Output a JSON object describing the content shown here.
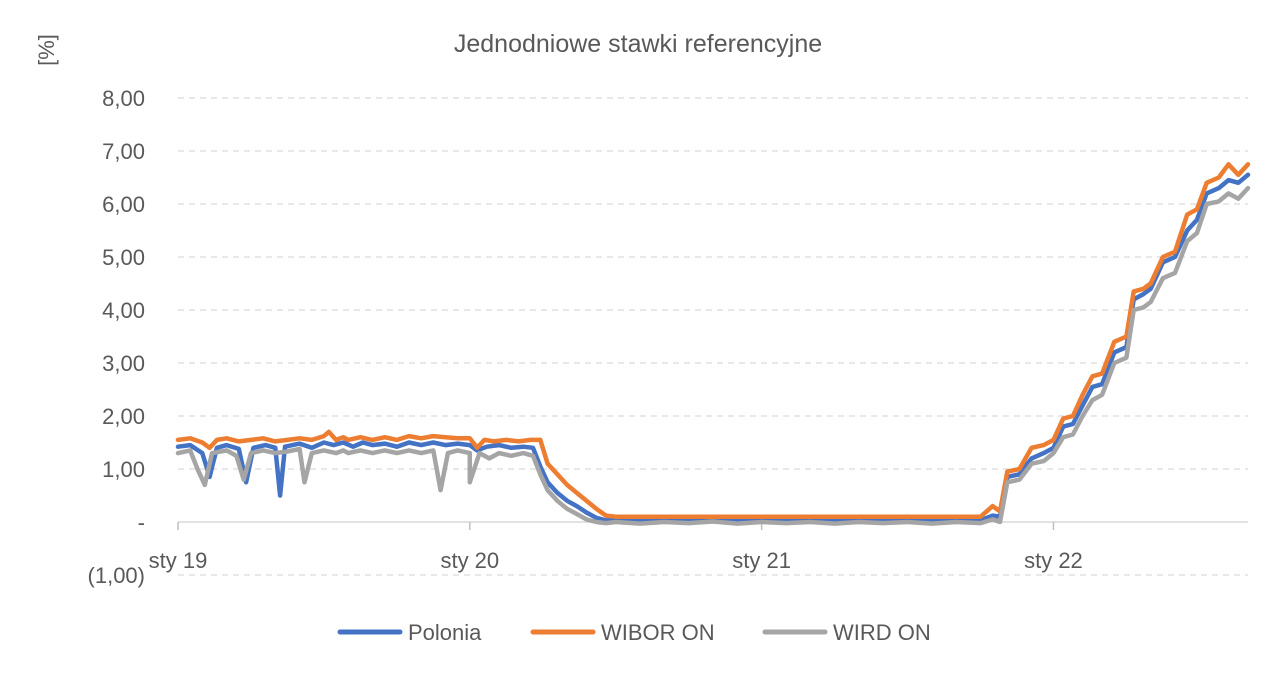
{
  "chart_data": {
    "type": "line",
    "title": "Jednodniowe stawki referencyjne",
    "ylabel": "[%]",
    "ylim": [
      -1,
      8
    ],
    "yticks": [
      {
        "value": 8,
        "label": "8,00"
      },
      {
        "value": 7,
        "label": "7,00"
      },
      {
        "value": 6,
        "label": "6,00"
      },
      {
        "value": 5,
        "label": "5,00"
      },
      {
        "value": 4,
        "label": "4,00"
      },
      {
        "value": 3,
        "label": "3,00"
      },
      {
        "value": 2,
        "label": "2,00"
      },
      {
        "value": 1,
        "label": "1,00"
      },
      {
        "value": 0,
        "label": "-"
      },
      {
        "value": -1,
        "label": "(1,00)"
      }
    ],
    "xticks": [
      {
        "value": 0,
        "label": "sty 19"
      },
      {
        "value": 12,
        "label": "sty 20"
      },
      {
        "value": 24,
        "label": "sty 21"
      },
      {
        "value": 36,
        "label": "sty 22"
      }
    ],
    "xlim": [
      0,
      44
    ],
    "grid": true,
    "legend": "bottom",
    "series": [
      {
        "name": "Polonia",
        "color": "#4472C4",
        "points": [
          [
            0,
            1.42
          ],
          [
            0.5,
            1.45
          ],
          [
            1,
            1.3
          ],
          [
            1.3,
            0.85
          ],
          [
            1.6,
            1.4
          ],
          [
            2,
            1.45
          ],
          [
            2.5,
            1.38
          ],
          [
            2.8,
            0.75
          ],
          [
            3.1,
            1.4
          ],
          [
            3.6,
            1.45
          ],
          [
            4,
            1.4
          ],
          [
            4.2,
            0.5
          ],
          [
            4.4,
            1.42
          ],
          [
            5,
            1.48
          ],
          [
            5.5,
            1.4
          ],
          [
            6,
            1.5
          ],
          [
            6.4,
            1.45
          ],
          [
            6.8,
            1.5
          ],
          [
            7.2,
            1.42
          ],
          [
            7.6,
            1.5
          ],
          [
            8,
            1.45
          ],
          [
            8.5,
            1.48
          ],
          [
            9,
            1.42
          ],
          [
            9.5,
            1.5
          ],
          [
            10,
            1.45
          ],
          [
            10.5,
            1.5
          ],
          [
            11,
            1.45
          ],
          [
            11.5,
            1.48
          ],
          [
            12,
            1.45
          ],
          [
            12.3,
            1.35
          ],
          [
            12.7,
            1.42
          ],
          [
            13.2,
            1.45
          ],
          [
            13.7,
            1.4
          ],
          [
            14.2,
            1.42
          ],
          [
            14.6,
            1.4
          ],
          [
            14.9,
            1.05
          ],
          [
            15.2,
            0.75
          ],
          [
            15.6,
            0.55
          ],
          [
            16,
            0.4
          ],
          [
            16.4,
            0.3
          ],
          [
            16.8,
            0.18
          ],
          [
            17.2,
            0.08
          ],
          [
            17.6,
            0.03
          ],
          [
            18,
            0.04
          ],
          [
            19,
            0.02
          ],
          [
            20,
            0.04
          ],
          [
            21,
            0.03
          ],
          [
            22,
            0.04
          ],
          [
            23,
            0.02
          ],
          [
            24,
            0.03
          ],
          [
            25,
            0.04
          ],
          [
            26,
            0.02
          ],
          [
            27,
            0.03
          ],
          [
            28,
            0.04
          ],
          [
            29,
            0.03
          ],
          [
            30,
            0.04
          ],
          [
            31,
            0.03
          ],
          [
            32,
            0.04
          ],
          [
            33,
            0.03
          ],
          [
            33.5,
            0.12
          ],
          [
            33.8,
            0.1
          ],
          [
            34.1,
            0.85
          ],
          [
            34.6,
            0.9
          ],
          [
            35.1,
            1.2
          ],
          [
            35.6,
            1.3
          ],
          [
            36,
            1.4
          ],
          [
            36.4,
            1.8
          ],
          [
            36.8,
            1.85
          ],
          [
            37.2,
            2.2
          ],
          [
            37.6,
            2.55
          ],
          [
            38,
            2.6
          ],
          [
            38.5,
            3.2
          ],
          [
            39,
            3.3
          ],
          [
            39.3,
            4.2
          ],
          [
            39.7,
            4.3
          ],
          [
            40,
            4.4
          ],
          [
            40.5,
            4.9
          ],
          [
            41,
            5.0
          ],
          [
            41.5,
            5.5
          ],
          [
            41.9,
            5.7
          ],
          [
            42.3,
            6.2
          ],
          [
            42.8,
            6.3
          ],
          [
            43.2,
            6.45
          ],
          [
            43.6,
            6.4
          ],
          [
            44,
            6.55
          ]
        ]
      },
      {
        "name": "WIBOR ON",
        "color": "#ED7D31",
        "points": [
          [
            0,
            1.55
          ],
          [
            0.5,
            1.58
          ],
          [
            1,
            1.5
          ],
          [
            1.3,
            1.4
          ],
          [
            1.6,
            1.55
          ],
          [
            2,
            1.58
          ],
          [
            2.5,
            1.52
          ],
          [
            3,
            1.55
          ],
          [
            3.5,
            1.58
          ],
          [
            4,
            1.52
          ],
          [
            4.5,
            1.55
          ],
          [
            5,
            1.58
          ],
          [
            5.5,
            1.55
          ],
          [
            6,
            1.62
          ],
          [
            6.2,
            1.7
          ],
          [
            6.5,
            1.55
          ],
          [
            6.8,
            1.6
          ],
          [
            7,
            1.55
          ],
          [
            7.5,
            1.6
          ],
          [
            8,
            1.55
          ],
          [
            8.5,
            1.6
          ],
          [
            9,
            1.55
          ],
          [
            9.5,
            1.62
          ],
          [
            10,
            1.58
          ],
          [
            10.5,
            1.62
          ],
          [
            11,
            1.6
          ],
          [
            11.5,
            1.58
          ],
          [
            12,
            1.58
          ],
          [
            12.3,
            1.4
          ],
          [
            12.6,
            1.55
          ],
          [
            13,
            1.52
          ],
          [
            13.5,
            1.55
          ],
          [
            14,
            1.52
          ],
          [
            14.5,
            1.55
          ],
          [
            14.9,
            1.55
          ],
          [
            15.2,
            1.1
          ],
          [
            15.6,
            0.9
          ],
          [
            16,
            0.7
          ],
          [
            16.4,
            0.55
          ],
          [
            16.8,
            0.4
          ],
          [
            17.2,
            0.25
          ],
          [
            17.6,
            0.12
          ],
          [
            18,
            0.1
          ],
          [
            19,
            0.1
          ],
          [
            20,
            0.1
          ],
          [
            21,
            0.1
          ],
          [
            22,
            0.1
          ],
          [
            23,
            0.1
          ],
          [
            24,
            0.1
          ],
          [
            25,
            0.1
          ],
          [
            26,
            0.1
          ],
          [
            27,
            0.1
          ],
          [
            28,
            0.1
          ],
          [
            29,
            0.1
          ],
          [
            30,
            0.1
          ],
          [
            31,
            0.1
          ],
          [
            32,
            0.1
          ],
          [
            33,
            0.1
          ],
          [
            33.5,
            0.3
          ],
          [
            33.8,
            0.2
          ],
          [
            34.1,
            0.95
          ],
          [
            34.6,
            1.0
          ],
          [
            35.1,
            1.4
          ],
          [
            35.6,
            1.45
          ],
          [
            36,
            1.55
          ],
          [
            36.4,
            1.95
          ],
          [
            36.8,
            2.0
          ],
          [
            37.2,
            2.4
          ],
          [
            37.6,
            2.75
          ],
          [
            38,
            2.8
          ],
          [
            38.5,
            3.4
          ],
          [
            39,
            3.5
          ],
          [
            39.3,
            4.35
          ],
          [
            39.7,
            4.4
          ],
          [
            40,
            4.5
          ],
          [
            40.5,
            5.0
          ],
          [
            41,
            5.1
          ],
          [
            41.5,
            5.8
          ],
          [
            41.9,
            5.9
          ],
          [
            42.3,
            6.4
          ],
          [
            42.8,
            6.5
          ],
          [
            43.2,
            6.75
          ],
          [
            43.6,
            6.55
          ],
          [
            44,
            6.75
          ]
        ]
      },
      {
        "name": "WIRD ON",
        "color": "#A5A5A5",
        "points": [
          [
            0,
            1.3
          ],
          [
            0.5,
            1.35
          ],
          [
            0.8,
            1.0
          ],
          [
            1.1,
            0.7
          ],
          [
            1.4,
            1.3
          ],
          [
            2,
            1.35
          ],
          [
            2.4,
            1.25
          ],
          [
            2.7,
            0.8
          ],
          [
            3,
            1.3
          ],
          [
            3.5,
            1.35
          ],
          [
            4,
            1.3
          ],
          [
            4.5,
            1.33
          ],
          [
            5,
            1.38
          ],
          [
            5.2,
            0.75
          ],
          [
            5.5,
            1.3
          ],
          [
            6,
            1.35
          ],
          [
            6.5,
            1.3
          ],
          [
            6.8,
            1.35
          ],
          [
            7,
            1.3
          ],
          [
            7.5,
            1.35
          ],
          [
            8,
            1.3
          ],
          [
            8.5,
            1.35
          ],
          [
            9,
            1.3
          ],
          [
            9.5,
            1.35
          ],
          [
            10,
            1.3
          ],
          [
            10.5,
            1.35
          ],
          [
            10.8,
            0.6
          ],
          [
            11.1,
            1.3
          ],
          [
            11.5,
            1.35
          ],
          [
            12,
            1.3
          ],
          [
            12,
            0.75
          ],
          [
            12.4,
            1.3
          ],
          [
            12.8,
            1.2
          ],
          [
            13.2,
            1.3
          ],
          [
            13.7,
            1.25
          ],
          [
            14.2,
            1.3
          ],
          [
            14.6,
            1.25
          ],
          [
            14.9,
            0.9
          ],
          [
            15.2,
            0.6
          ],
          [
            15.6,
            0.4
          ],
          [
            16,
            0.25
          ],
          [
            16.4,
            0.15
          ],
          [
            16.8,
            0.05
          ],
          [
            17.2,
            0
          ],
          [
            17.6,
            -0.02
          ],
          [
            18,
            0
          ],
          [
            19,
            -0.03
          ],
          [
            20,
            0
          ],
          [
            21,
            -0.02
          ],
          [
            22,
            0.01
          ],
          [
            23,
            -0.03
          ],
          [
            24,
            0
          ],
          [
            25,
            -0.02
          ],
          [
            26,
            0
          ],
          [
            27,
            -0.03
          ],
          [
            28,
            0
          ],
          [
            29,
            -0.02
          ],
          [
            30,
            0
          ],
          [
            31,
            -0.03
          ],
          [
            32,
            0
          ],
          [
            33,
            -0.02
          ],
          [
            33.5,
            0.05
          ],
          [
            33.8,
            0
          ],
          [
            34.1,
            0.75
          ],
          [
            34.6,
            0.8
          ],
          [
            35.1,
            1.1
          ],
          [
            35.6,
            1.15
          ],
          [
            36,
            1.3
          ],
          [
            36.4,
            1.6
          ],
          [
            36.8,
            1.65
          ],
          [
            37.2,
            2.0
          ],
          [
            37.6,
            2.3
          ],
          [
            38,
            2.4
          ],
          [
            38.5,
            3.0
          ],
          [
            39,
            3.1
          ],
          [
            39.3,
            4.0
          ],
          [
            39.7,
            4.05
          ],
          [
            40,
            4.15
          ],
          [
            40.5,
            4.6
          ],
          [
            41,
            4.7
          ],
          [
            41.5,
            5.3
          ],
          [
            41.9,
            5.45
          ],
          [
            42.3,
            6.0
          ],
          [
            42.8,
            6.05
          ],
          [
            43.2,
            6.2
          ],
          [
            43.6,
            6.1
          ],
          [
            44,
            6.3
          ]
        ]
      }
    ]
  }
}
